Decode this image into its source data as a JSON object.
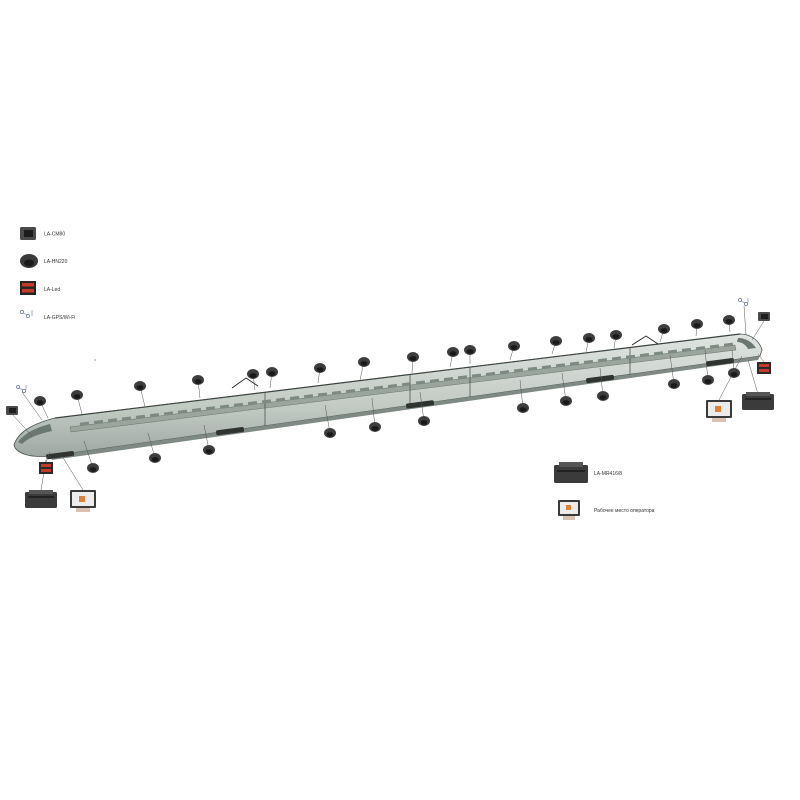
{
  "legend_top": [
    {
      "icon": "box-camera-icon",
      "label": "LA-CM80"
    },
    {
      "icon": "dome-camera-icon",
      "label": "LA-HN220"
    },
    {
      "icon": "led-panel-icon",
      "label": "LA-Led"
    },
    {
      "icon": "gps-wifi-antenna-icon",
      "label": "LA-GPS/Wi-Fi"
    }
  ],
  "legend_bottom": [
    {
      "icon": "recorder-unit-icon",
      "label": "LA-MR416/8"
    },
    {
      "icon": "operator-workstation-icon",
      "label": "Рабочее место оператора"
    }
  ],
  "colors": {
    "train_body": "#c5ccc7",
    "train_window": "#8e9a93",
    "camera": "#3d3d3d",
    "leader_line": "#555555",
    "screen_accent": "#e0803a"
  }
}
